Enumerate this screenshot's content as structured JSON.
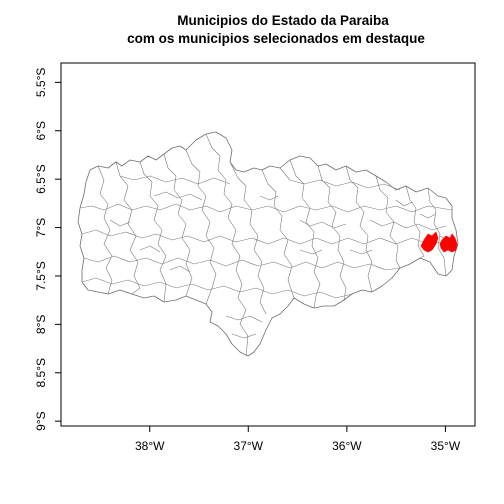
{
  "figure": {
    "title_line1": "Municipios do Estado da Paraiba",
    "title_line2": "com os municipios selecionados em destaque"
  },
  "colors": {
    "municipality_border": "#7a7a7a",
    "selected_fill": "#ff0000",
    "frame": "#000000",
    "background": "#ffffff"
  },
  "axes": {
    "x_ticks": [
      {
        "value": -38,
        "label": "38°W"
      },
      {
        "value": -37,
        "label": "37°W"
      },
      {
        "value": -36,
        "label": "36°W"
      },
      {
        "value": -35,
        "label": "35°W"
      }
    ],
    "y_ticks": [
      {
        "value": -5.5,
        "label": "5.5°S"
      },
      {
        "value": -6.0,
        "label": "6°S"
      },
      {
        "value": -6.5,
        "label": "6.5°S"
      },
      {
        "value": -7.0,
        "label": "7°S"
      },
      {
        "value": -7.5,
        "label": "7.5°S"
      },
      {
        "value": -8.0,
        "label": "8°S"
      },
      {
        "value": -8.5,
        "label": "8.5°S"
      },
      {
        "value": -9.0,
        "label": "9°S"
      }
    ],
    "xlim": [
      -38.9,
      -34.7
    ],
    "ylim": [
      -9.05,
      -5.3
    ]
  },
  "map": {
    "region": "Paraiba",
    "highlight_color": "#ff0000",
    "highlighted_municipalities": 2
  }
}
